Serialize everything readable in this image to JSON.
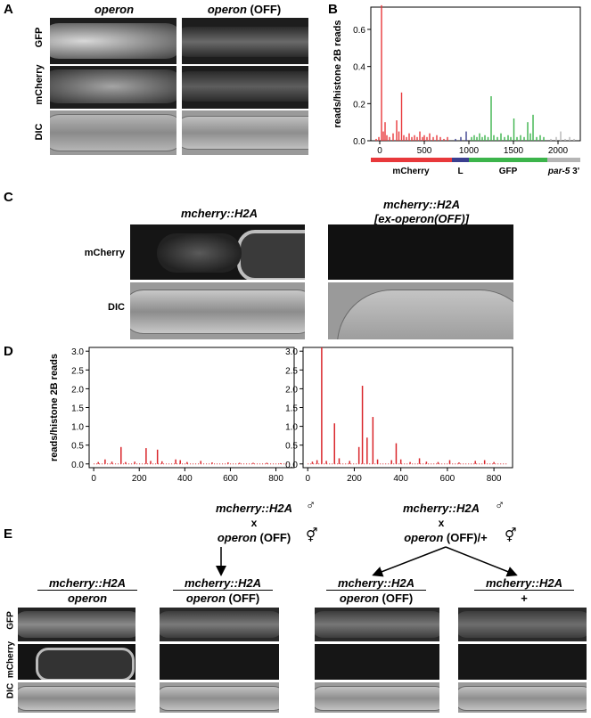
{
  "panel_letters": {
    "a": "A",
    "b": "B",
    "c": "C",
    "d": "D",
    "e": "E"
  },
  "panelA": {
    "col1": "operon",
    "col2_italic": "operon",
    "col2_suffix": " (OFF)",
    "rows": [
      "GFP",
      "mCherry",
      "DIC"
    ]
  },
  "panelB": {
    "ylabel": "reads/histone 2B reads",
    "track_labels": {
      "mcherry": "mCherry",
      "linker": "L",
      "gfp": "GFP",
      "par5_italic": "par-5",
      "par5_suffix": " 3'"
    },
    "colors": {
      "mcherry": "#e8383b",
      "linker": "#3a3f8f",
      "gfp": "#3cb44b",
      "par5": "#b5b5b5"
    }
  },
  "panelC": {
    "col1": "mcherry::H2A",
    "col2_line1": "mcherry::H2A",
    "col2_line2": "[ex-operon(OFF)]",
    "rows": [
      "mCherry",
      "DIC"
    ]
  },
  "panelD": {
    "ylabel": "reads/histone 2B reads"
  },
  "panelE": {
    "cross1": {
      "male": "mcherry::H2A",
      "x": "x",
      "female_italic": "operon",
      "female_suffix": " (OFF)"
    },
    "cross2": {
      "male": "mcherry::H2A",
      "x": "x",
      "female_italic": "operon",
      "female_suffix": " (OFF)/+"
    },
    "male_symbol": "♂",
    "herm_symbol": "⚥",
    "genotypes": [
      {
        "top": "mcherry::H2A",
        "bottom_italic": "operon",
        "bottom_suffix": ""
      },
      {
        "top": "mcherry::H2A",
        "bottom_italic": "operon",
        "bottom_suffix": " (OFF)"
      },
      {
        "top": "mcherry::H2A",
        "bottom_italic": "operon",
        "bottom_suffix": " (OFF)"
      },
      {
        "top": "mcherry::H2A",
        "bottom_italic": "",
        "bottom_suffix": "+"
      }
    ],
    "rows": [
      "GFP",
      "mCherry",
      "DIC"
    ]
  },
  "chart_data": [
    {
      "type": "bar",
      "panel": "B",
      "ylabel": "reads/histone 2B reads",
      "xlim": [
        -100,
        2250
      ],
      "ylim": [
        0,
        0.72
      ],
      "xticks": [
        0,
        500,
        1000,
        1500,
        2000
      ],
      "yticks": [
        0.0,
        0.2,
        0.4,
        0.6
      ],
      "segments": [
        {
          "name": "mCherry",
          "start": -100,
          "end": 810,
          "color": "#e8383b"
        },
        {
          "name": "L",
          "start": 810,
          "end": 1000,
          "color": "#3a3f8f"
        },
        {
          "name": "GFP",
          "start": 1000,
          "end": 1880,
          "color": "#3cb44b"
        },
        {
          "name": "par-5 3'",
          "start": 1880,
          "end": 2250,
          "color": "#b5b5b5"
        }
      ],
      "bars": [
        {
          "x": -40,
          "y": 0.01
        },
        {
          "x": -10,
          "y": 0.02
        },
        {
          "x": 20,
          "y": 0.73
        },
        {
          "x": 40,
          "y": 0.05
        },
        {
          "x": 60,
          "y": 0.1
        },
        {
          "x": 80,
          "y": 0.03
        },
        {
          "x": 110,
          "y": 0.02
        },
        {
          "x": 150,
          "y": 0.04
        },
        {
          "x": 190,
          "y": 0.11
        },
        {
          "x": 215,
          "y": 0.05
        },
        {
          "x": 245,
          "y": 0.26
        },
        {
          "x": 270,
          "y": 0.03
        },
        {
          "x": 300,
          "y": 0.02
        },
        {
          "x": 330,
          "y": 0.04
        },
        {
          "x": 360,
          "y": 0.02
        },
        {
          "x": 390,
          "y": 0.03
        },
        {
          "x": 420,
          "y": 0.02
        },
        {
          "x": 450,
          "y": 0.05
        },
        {
          "x": 480,
          "y": 0.02
        },
        {
          "x": 500,
          "y": 0.03
        },
        {
          "x": 530,
          "y": 0.02
        },
        {
          "x": 560,
          "y": 0.04
        },
        {
          "x": 600,
          "y": 0.02
        },
        {
          "x": 640,
          "y": 0.03
        },
        {
          "x": 680,
          "y": 0.02
        },
        {
          "x": 720,
          "y": 0.01
        },
        {
          "x": 760,
          "y": 0.02
        },
        {
          "x": 850,
          "y": 0.01
        },
        {
          "x": 910,
          "y": 0.02
        },
        {
          "x": 970,
          "y": 0.05
        },
        {
          "x": 1030,
          "y": 0.02
        },
        {
          "x": 1060,
          "y": 0.03
        },
        {
          "x": 1090,
          "y": 0.02
        },
        {
          "x": 1120,
          "y": 0.04
        },
        {
          "x": 1150,
          "y": 0.02
        },
        {
          "x": 1180,
          "y": 0.03
        },
        {
          "x": 1215,
          "y": 0.02
        },
        {
          "x": 1250,
          "y": 0.24
        },
        {
          "x": 1280,
          "y": 0.03
        },
        {
          "x": 1320,
          "y": 0.02
        },
        {
          "x": 1360,
          "y": 0.04
        },
        {
          "x": 1400,
          "y": 0.02
        },
        {
          "x": 1440,
          "y": 0.03
        },
        {
          "x": 1470,
          "y": 0.02
        },
        {
          "x": 1505,
          "y": 0.12
        },
        {
          "x": 1540,
          "y": 0.02
        },
        {
          "x": 1580,
          "y": 0.03
        },
        {
          "x": 1620,
          "y": 0.02
        },
        {
          "x": 1660,
          "y": 0.1
        },
        {
          "x": 1690,
          "y": 0.04
        },
        {
          "x": 1720,
          "y": 0.14
        },
        {
          "x": 1760,
          "y": 0.02
        },
        {
          "x": 1800,
          "y": 0.03
        },
        {
          "x": 1840,
          "y": 0.02
        },
        {
          "x": 1920,
          "y": 0.01
        },
        {
          "x": 1980,
          "y": 0.02
        },
        {
          "x": 2030,
          "y": 0.05
        },
        {
          "x": 2080,
          "y": 0.01
        },
        {
          "x": 2130,
          "y": 0.02
        },
        {
          "x": 2180,
          "y": 0.01
        }
      ]
    },
    {
      "type": "bar",
      "panel": "D-left",
      "ylabel": "reads/histone 2B reads",
      "xlim": [
        -20,
        880
      ],
      "ylim": [
        -0.1,
        3.1
      ],
      "xticks": [
        0,
        200,
        400,
        600,
        800
      ],
      "yticks": [
        0.0,
        0.5,
        1.0,
        1.5,
        2.0,
        2.5,
        3.0
      ],
      "color": "#d9262b",
      "bars": [
        {
          "x": 20,
          "y": 0.05
        },
        {
          "x": 50,
          "y": 0.12
        },
        {
          "x": 80,
          "y": 0.06
        },
        {
          "x": 120,
          "y": 0.45
        },
        {
          "x": 140,
          "y": 0.05
        },
        {
          "x": 180,
          "y": 0.06
        },
        {
          "x": 230,
          "y": 0.42
        },
        {
          "x": 250,
          "y": 0.08
        },
        {
          "x": 280,
          "y": 0.38
        },
        {
          "x": 300,
          "y": 0.07
        },
        {
          "x": 360,
          "y": 0.12
        },
        {
          "x": 380,
          "y": 0.1
        },
        {
          "x": 410,
          "y": 0.05
        },
        {
          "x": 470,
          "y": 0.08
        },
        {
          "x": 520,
          "y": 0.04
        },
        {
          "x": 590,
          "y": 0.04
        },
        {
          "x": 640,
          "y": 0.03
        },
        {
          "x": 700,
          "y": 0.03
        },
        {
          "x": 760,
          "y": 0.03
        },
        {
          "x": 820,
          "y": 0.02
        }
      ]
    },
    {
      "type": "bar",
      "panel": "D-right",
      "xlim": [
        -20,
        880
      ],
      "ylim": [
        -0.1,
        3.1
      ],
      "xticks": [
        0,
        200,
        400,
        600,
        800
      ],
      "yticks": [
        0.0,
        0.5,
        1.0,
        1.5,
        2.0,
        2.5,
        3.0
      ],
      "color": "#d9262b",
      "bars": [
        {
          "x": 20,
          "y": 0.06
        },
        {
          "x": 40,
          "y": 0.1
        },
        {
          "x": 60,
          "y": 3.1
        },
        {
          "x": 80,
          "y": 0.08
        },
        {
          "x": 115,
          "y": 1.08
        },
        {
          "x": 135,
          "y": 0.15
        },
        {
          "x": 180,
          "y": 0.08
        },
        {
          "x": 220,
          "y": 0.45
        },
        {
          "x": 235,
          "y": 2.08
        },
        {
          "x": 255,
          "y": 0.7
        },
        {
          "x": 280,
          "y": 1.25
        },
        {
          "x": 300,
          "y": 0.12
        },
        {
          "x": 360,
          "y": 0.1
        },
        {
          "x": 380,
          "y": 0.55
        },
        {
          "x": 400,
          "y": 0.12
        },
        {
          "x": 440,
          "y": 0.05
        },
        {
          "x": 480,
          "y": 0.15
        },
        {
          "x": 510,
          "y": 0.06
        },
        {
          "x": 560,
          "y": 0.05
        },
        {
          "x": 610,
          "y": 0.1
        },
        {
          "x": 650,
          "y": 0.04
        },
        {
          "x": 720,
          "y": 0.08
        },
        {
          "x": 760,
          "y": 0.1
        },
        {
          "x": 800,
          "y": 0.05
        }
      ]
    }
  ]
}
